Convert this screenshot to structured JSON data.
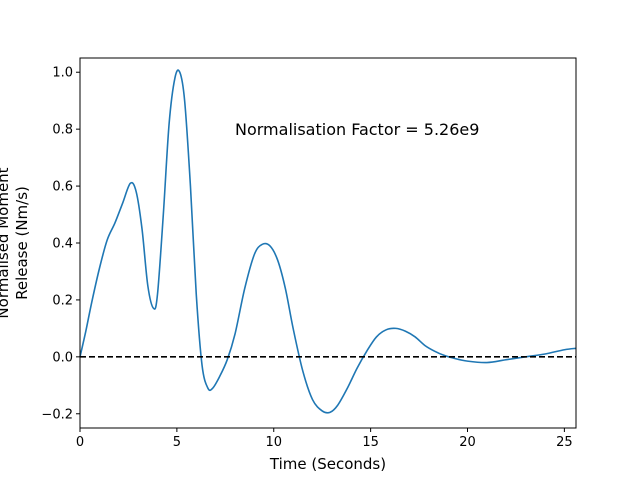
{
  "chart_data": {
    "type": "line",
    "title": "",
    "xlabel": "Time (Seconds)",
    "ylabel": [
      "Normalised Moment",
      "Release (Nm/s)"
    ],
    "xlim": [
      0,
      25.6
    ],
    "ylim": [
      -0.25,
      1.05
    ],
    "grid": false,
    "legend": "none",
    "xticks": [
      0,
      5,
      10,
      15,
      20,
      25
    ],
    "xtick_labels": [
      "0",
      "5",
      "10",
      "15",
      "20",
      "25"
    ],
    "yticks": [
      -0.2,
      0.0,
      0.2,
      0.4,
      0.6,
      0.8,
      1.0
    ],
    "ytick_labels": [
      "−0.2",
      "0.0",
      "0.2",
      "0.4",
      "0.6",
      "0.8",
      "1.0"
    ],
    "annotation": {
      "text": "Normalisation Factor = 5.26e9",
      "x": 8.0,
      "y": 0.8
    },
    "reference_line": {
      "y": 0.0,
      "style": "dashed",
      "color": "#000000"
    },
    "series": [
      {
        "color": "#1f77b4",
        "x": [
          0,
          0.3,
          0.6,
          1.0,
          1.4,
          1.8,
          2.2,
          2.6,
          2.9,
          3.2,
          3.5,
          3.8,
          4.0,
          4.3,
          4.6,
          4.9,
          5.15,
          5.4,
          5.7,
          6.0,
          6.3,
          6.6,
          6.85,
          7.2,
          7.6,
          8.0,
          8.5,
          9.0,
          9.4,
          9.8,
          10.2,
          10.6,
          11.0,
          11.5,
          12.0,
          12.5,
          12.9,
          13.3,
          13.8,
          14.3,
          14.8,
          15.3,
          15.8,
          16.3,
          16.8,
          17.3,
          17.8,
          18.3,
          18.8,
          19.3,
          20.0,
          21.0,
          22.0,
          23.0,
          24.0,
          25.0,
          25.6
        ],
        "y": [
          0.0,
          0.09,
          0.19,
          0.31,
          0.41,
          0.47,
          0.54,
          0.61,
          0.58,
          0.45,
          0.25,
          0.17,
          0.22,
          0.5,
          0.82,
          0.98,
          1.0,
          0.9,
          0.6,
          0.22,
          -0.03,
          -0.11,
          -0.11,
          -0.07,
          -0.01,
          0.08,
          0.24,
          0.36,
          0.395,
          0.39,
          0.34,
          0.24,
          0.1,
          -0.05,
          -0.15,
          -0.19,
          -0.195,
          -0.17,
          -0.11,
          -0.04,
          0.02,
          0.07,
          0.095,
          0.1,
          0.09,
          0.07,
          0.04,
          0.02,
          0.005,
          -0.005,
          -0.015,
          -0.02,
          -0.01,
          0.0,
          0.01,
          0.025,
          0.03
        ]
      }
    ]
  }
}
